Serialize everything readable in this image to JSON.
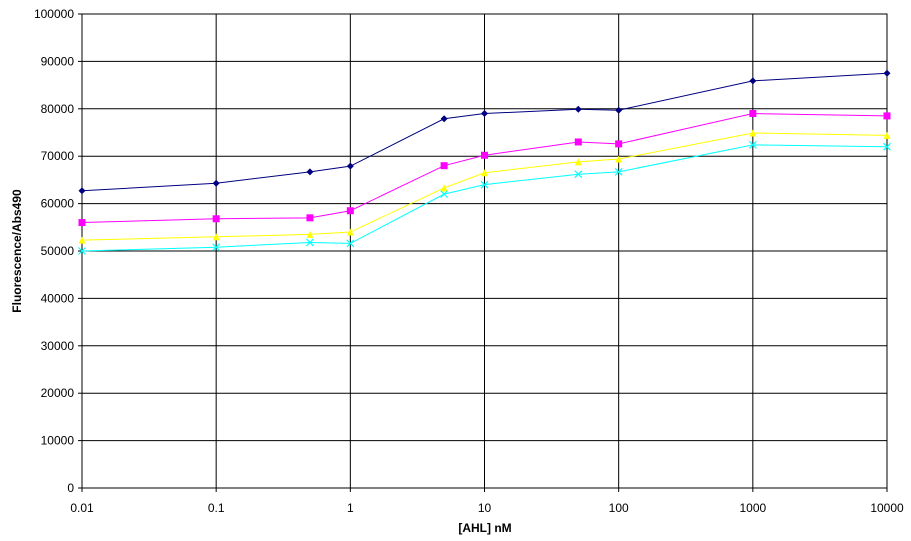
{
  "chart_data": {
    "type": "line",
    "x_label": "[AHL] nM",
    "y_label": "Fluorescence/Abs490",
    "x": [
      0.01,
      0.1,
      0.5,
      1,
      5,
      10,
      50,
      100,
      1000,
      10000
    ],
    "x_log": true,
    "xlim": [
      0.01,
      10000
    ],
    "xticks": [
      0.01,
      0.1,
      1,
      10,
      100,
      1000,
      10000
    ],
    "ylim": [
      0,
      100000
    ],
    "yticks": [
      0,
      10000,
      20000,
      30000,
      40000,
      50000,
      60000,
      70000,
      80000,
      90000,
      100000
    ],
    "grid": true,
    "series": [
      {
        "color": "#000080",
        "marker": "diamond",
        "values": [
          62700,
          64300,
          66700,
          67900,
          77900,
          79000,
          79900,
          79700,
          85900,
          87500
        ]
      },
      {
        "color": "#ff00ff",
        "marker": "square",
        "values": [
          56000,
          56800,
          57000,
          58500,
          68000,
          70200,
          73000,
          72600,
          79000,
          78500
        ]
      },
      {
        "color": "#ffff00",
        "marker": "triangle",
        "values": [
          52300,
          53000,
          53500,
          54000,
          63300,
          66500,
          68800,
          69400,
          74900,
          74400
        ]
      },
      {
        "color": "#00ffff",
        "marker": "x",
        "values": [
          50000,
          50800,
          51800,
          51600,
          62000,
          64000,
          66200,
          66700,
          72400,
          72000
        ]
      }
    ]
  }
}
